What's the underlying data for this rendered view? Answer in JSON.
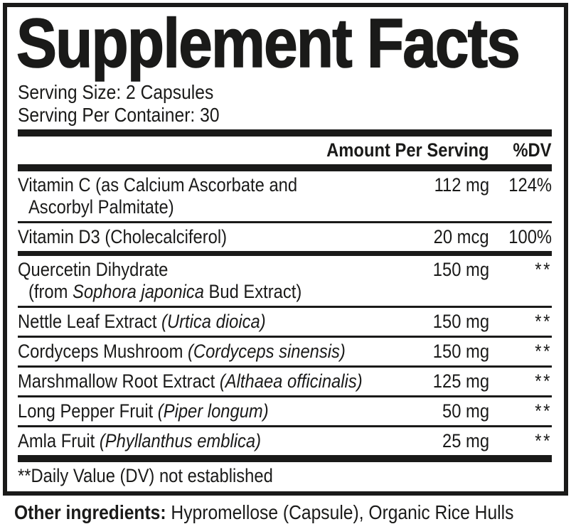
{
  "title": "Supplement Facts",
  "serving": {
    "size_label": "Serving Size: 2 Capsules",
    "per_container_label": "Serving Per Container: 30"
  },
  "table": {
    "header": {
      "amount": "Amount Per Serving",
      "dv": "%DV"
    },
    "rows": [
      {
        "lines": [
          [
            {
              "text": "Vitamin C (as Calcium Ascorbate and",
              "italic": false
            }
          ],
          [
            {
              "text": "Ascorbyl Palmitate)",
              "italic": false
            }
          ]
        ],
        "amount": "112 mg",
        "dv": "124%",
        "separator_after": "thin"
      },
      {
        "lines": [
          [
            {
              "text": "Vitamin D3 (Cholecalciferol)",
              "italic": false
            }
          ]
        ],
        "amount": "20 mcg",
        "dv": "100%",
        "separator_after": "medium"
      },
      {
        "lines": [
          [
            {
              "text": "Quercetin Dihydrate",
              "italic": false
            }
          ],
          [
            {
              "text": "(from ",
              "italic": false
            },
            {
              "text": "Sophora japonica",
              "italic": true
            },
            {
              "text": " Bud Extract)",
              "italic": false
            }
          ]
        ],
        "amount": "150 mg",
        "dv": "**",
        "separator_after": "thin"
      },
      {
        "lines": [
          [
            {
              "text": "Nettle Leaf Extract ",
              "italic": false
            },
            {
              "text": "(Urtica dioica)",
              "italic": true
            }
          ]
        ],
        "amount": "150 mg",
        "dv": "**",
        "separator_after": "thin"
      },
      {
        "lines": [
          [
            {
              "text": "Cordyceps Mushroom ",
              "italic": false
            },
            {
              "text": "(Cordyceps sinensis)",
              "italic": true
            }
          ]
        ],
        "amount": "150 mg",
        "dv": "**",
        "separator_after": "thin"
      },
      {
        "lines": [
          [
            {
              "text": "Marshmallow Root Extract ",
              "italic": false
            },
            {
              "text": "(Althaea officinalis)",
              "italic": true
            }
          ]
        ],
        "amount": "125 mg",
        "dv": "**",
        "separator_after": "thin"
      },
      {
        "lines": [
          [
            {
              "text": "Long Pepper Fruit ",
              "italic": false
            },
            {
              "text": "(Piper longum)",
              "italic": true
            }
          ]
        ],
        "amount": "50 mg",
        "dv": "**",
        "separator_after": "thin"
      },
      {
        "lines": [
          [
            {
              "text": "Amla Fruit ",
              "italic": false
            },
            {
              "text": "(Phyllanthus emblica)",
              "italic": true
            }
          ]
        ],
        "amount": "25 mg",
        "dv": "**",
        "separator_after": "thick"
      }
    ],
    "footnote": "**Daily Value (DV) not established"
  },
  "other_ingredients": {
    "label": "Other ingredients:",
    "value": " Hypromellose (Capsule), Organic Rice Hulls"
  },
  "colors": {
    "ink": "#1a1a19",
    "background": "#ffffff"
  }
}
